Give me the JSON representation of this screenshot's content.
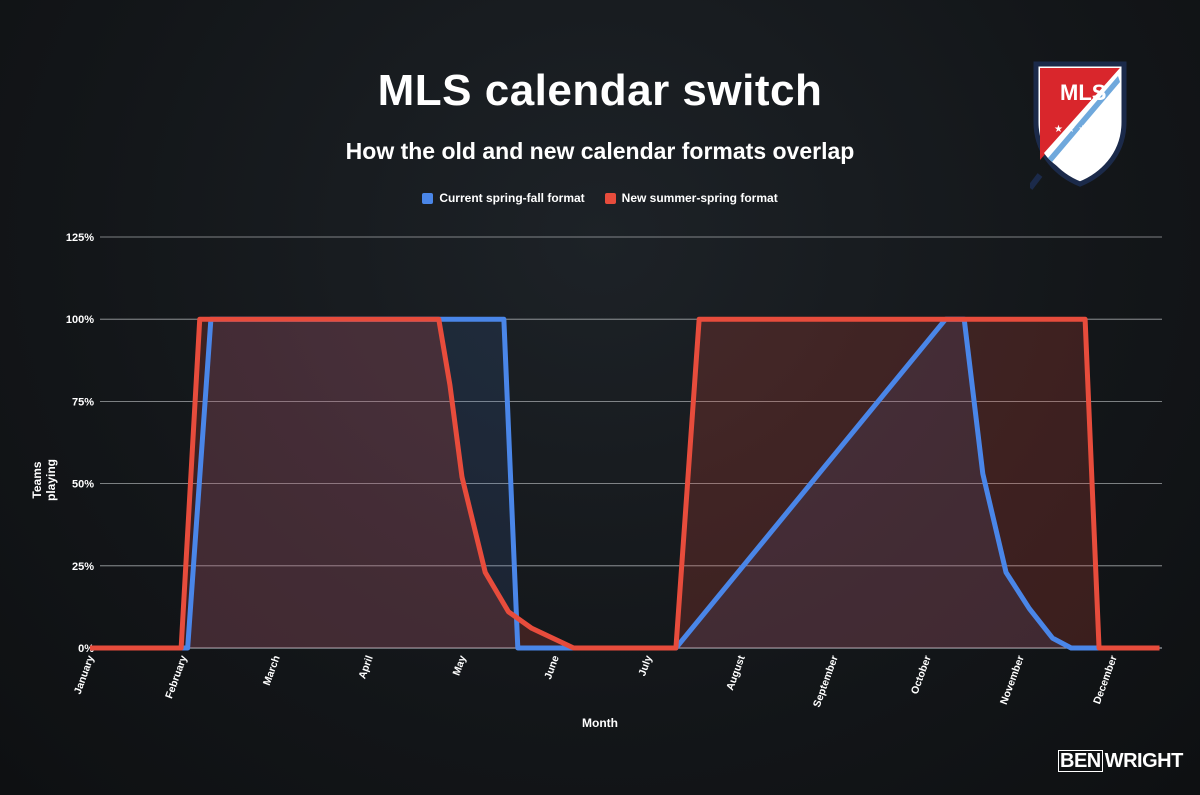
{
  "chart_data": {
    "type": "area",
    "title": "MLS calendar switch",
    "subtitle": "How the old and new calendar formats overlap",
    "xlabel": "Month",
    "ylabel": "Teams playing",
    "ylim": [
      0,
      125
    ],
    "yticks": [
      "0%",
      "25%",
      "50%",
      "75%",
      "100%",
      "125%"
    ],
    "ytick_values": [
      0,
      25,
      50,
      75,
      100,
      125
    ],
    "categories": [
      "January",
      "February",
      "March",
      "April",
      "May",
      "June",
      "July",
      "August",
      "September",
      "October",
      "November",
      "December"
    ],
    "legend_position": "top-center",
    "series": [
      {
        "name": "Current spring-fall format",
        "color": "#4a86e8",
        "x": [
          0,
          1.05,
          1.3,
          3.7,
          4.45,
          4.6,
          4.75,
          5.0,
          5.2,
          6.0,
          6.3,
          9.2,
          9.4,
          9.6,
          9.85,
          10.1,
          10.35,
          10.55,
          11.5
        ],
        "y": [
          0,
          0,
          100,
          100,
          100,
          0,
          0,
          0,
          0,
          0,
          0,
          100,
          100,
          53,
          23,
          12,
          3,
          0,
          0
        ]
      },
      {
        "name": "New summer-spring format",
        "color": "#e74c3c",
        "x": [
          0,
          0.98,
          1.18,
          3.75,
          3.87,
          4.0,
          4.25,
          4.5,
          4.75,
          5.2,
          6.0,
          6.3,
          6.55,
          10.5,
          10.7,
          10.85,
          11.5
        ],
        "y": [
          0,
          0,
          100,
          100,
          80,
          52,
          23,
          11,
          6,
          0,
          0,
          0,
          100,
          100,
          100,
          0,
          0
        ]
      }
    ]
  },
  "credit": {
    "ben": "BEN",
    "wright": "WRIGHT"
  },
  "logo": {
    "text": "MLS",
    "stars": "★ ★ ★"
  }
}
